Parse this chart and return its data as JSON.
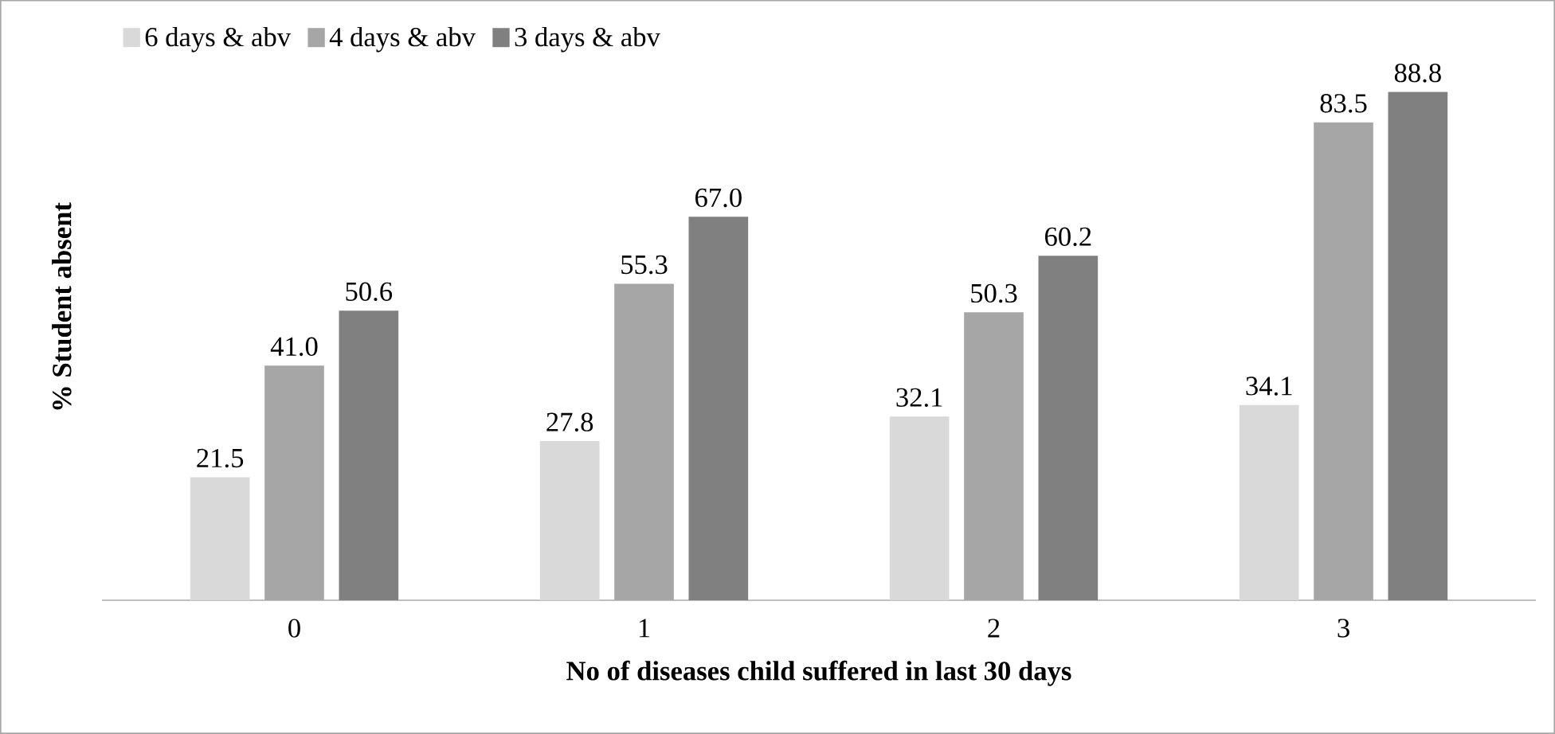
{
  "chart_data": {
    "type": "bar",
    "xlabel": "No of diseases child suffered in last 30 days",
    "ylabel": "% Student absent",
    "categories": [
      "0",
      "1",
      "2",
      "3"
    ],
    "legend": "top left",
    "series": [
      {
        "name": "6 days & abv",
        "color": "#d9d9d9",
        "values": [
          21.5,
          27.8,
          32.1,
          34.1
        ],
        "value_labels": [
          "21.5",
          "27.8",
          "32.1",
          "34.1"
        ]
      },
      {
        "name": "4 days & abv",
        "color": "#a6a6a6",
        "values": [
          41.0,
          55.3,
          50.3,
          83.5
        ],
        "value_labels": [
          "41.0",
          "55.3",
          "50.3",
          "83.5"
        ]
      },
      {
        "name": "3 days & abv",
        "color": "#808080",
        "values": [
          50.6,
          67.0,
          60.2,
          88.8
        ],
        "value_labels": [
          "50.6",
          "67.0",
          "60.2",
          "88.8"
        ]
      }
    ]
  }
}
